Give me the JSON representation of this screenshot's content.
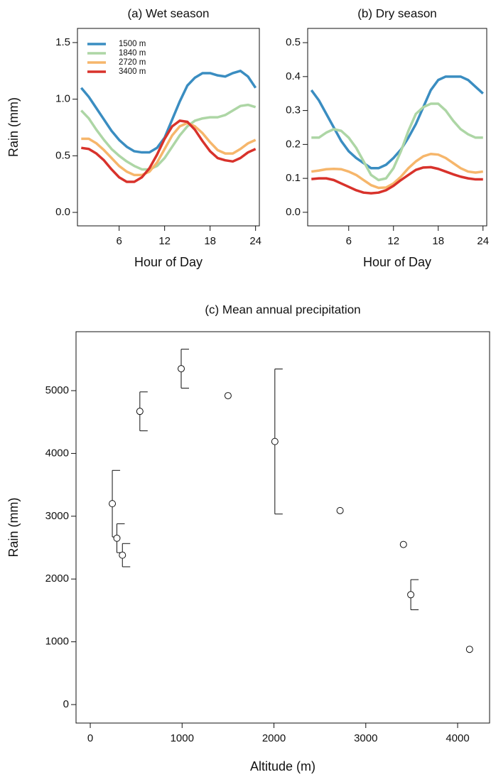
{
  "chart_data": [
    {
      "type": "line",
      "title": "(a) Wet season",
      "xlabel": "Hour of Day",
      "ylabel": "Rain (mm)",
      "x": [
        1,
        2,
        3,
        4,
        5,
        6,
        7,
        8,
        9,
        10,
        11,
        12,
        13,
        14,
        15,
        16,
        17,
        18,
        19,
        20,
        21,
        22,
        23,
        24
      ],
      "xlim": [
        0.5,
        24.5
      ],
      "xticks": [
        6,
        12,
        18,
        24
      ],
      "ylim": [
        -0.119,
        1.625
      ],
      "yticks": [
        {
          "value": 0,
          "label": "0.0"
        },
        0.5,
        {
          "value": 1,
          "label": "1.0"
        },
        1.5
      ],
      "legend": "upper left",
      "series": [
        {
          "name": "1500 m",
          "color": "#3a8dc1",
          "values": [
            1.1,
            1.02,
            0.92,
            0.82,
            0.72,
            0.64,
            0.58,
            0.54,
            0.53,
            0.53,
            0.57,
            0.66,
            0.82,
            0.98,
            1.12,
            1.19,
            1.23,
            1.23,
            1.21,
            1.2,
            1.23,
            1.25,
            1.2,
            1.1
          ]
        },
        {
          "name": "1840 m",
          "color": "#add6a5",
          "values": [
            0.9,
            0.83,
            0.73,
            0.64,
            0.56,
            0.5,
            0.45,
            0.41,
            0.38,
            0.38,
            0.41,
            0.48,
            0.58,
            0.68,
            0.76,
            0.81,
            0.83,
            0.84,
            0.84,
            0.86,
            0.9,
            0.94,
            0.95,
            0.93
          ]
        },
        {
          "name": "2720 m",
          "color": "#f6b66b",
          "values": [
            0.65,
            0.65,
            0.61,
            0.55,
            0.48,
            0.41,
            0.36,
            0.33,
            0.33,
            0.36,
            0.44,
            0.56,
            0.68,
            0.76,
            0.79,
            0.76,
            0.7,
            0.62,
            0.55,
            0.52,
            0.52,
            0.56,
            0.61,
            0.64
          ]
        },
        {
          "name": "3400 m",
          "color": "#d8322b",
          "values": [
            0.57,
            0.56,
            0.52,
            0.46,
            0.38,
            0.31,
            0.27,
            0.27,
            0.31,
            0.39,
            0.51,
            0.65,
            0.76,
            0.81,
            0.8,
            0.73,
            0.63,
            0.54,
            0.48,
            0.46,
            0.45,
            0.48,
            0.53,
            0.56
          ]
        }
      ]
    },
    {
      "type": "line",
      "title": "(b) Dry season",
      "xlabel": "Hour of Day",
      "x": [
        1,
        2,
        3,
        4,
        5,
        6,
        7,
        8,
        9,
        10,
        11,
        12,
        13,
        14,
        15,
        16,
        17,
        18,
        19,
        20,
        21,
        22,
        23,
        24
      ],
      "xlim": [
        0.5,
        24.5
      ],
      "xticks": [
        6,
        12,
        18,
        24
      ],
      "ylim": [
        -0.04,
        0.542
      ],
      "yticks": [
        {
          "value": 0,
          "label": "0.0"
        },
        0.1,
        0.2,
        0.3,
        0.4,
        0.5
      ],
      "series": [
        {
          "color": "#3a8dc1",
          "values": [
            0.36,
            0.33,
            0.29,
            0.25,
            0.21,
            0.18,
            0.16,
            0.145,
            0.13,
            0.13,
            0.14,
            0.16,
            0.185,
            0.22,
            0.26,
            0.31,
            0.36,
            0.39,
            0.4,
            0.4,
            0.4,
            0.39,
            0.37,
            0.35
          ]
        },
        {
          "color": "#add6a5",
          "values": [
            0.22,
            0.22,
            0.235,
            0.245,
            0.24,
            0.22,
            0.19,
            0.15,
            0.11,
            0.095,
            0.1,
            0.13,
            0.18,
            0.24,
            0.29,
            0.31,
            0.32,
            0.32,
            0.3,
            0.27,
            0.245,
            0.23,
            0.22,
            0.22
          ]
        },
        {
          "color": "#f6b66b",
          "values": [
            0.12,
            0.123,
            0.127,
            0.128,
            0.127,
            0.12,
            0.11,
            0.095,
            0.08,
            0.072,
            0.073,
            0.085,
            0.105,
            0.13,
            0.15,
            0.165,
            0.172,
            0.17,
            0.16,
            0.145,
            0.13,
            0.12,
            0.117,
            0.12
          ]
        },
        {
          "color": "#d8322b",
          "values": [
            0.098,
            0.1,
            0.1,
            0.095,
            0.085,
            0.075,
            0.065,
            0.058,
            0.056,
            0.058,
            0.065,
            0.078,
            0.095,
            0.11,
            0.125,
            0.132,
            0.133,
            0.128,
            0.12,
            0.112,
            0.105,
            0.1,
            0.097,
            0.097
          ]
        }
      ]
    },
    {
      "type": "scatter",
      "title": "(c) Mean annual precipitation",
      "xlabel": "Altitude (m)",
      "ylabel": "Rain (mm)",
      "x": [
        240,
        290,
        350,
        540,
        990,
        1500,
        2010,
        2720,
        3410,
        3490,
        4130
      ],
      "values": [
        3200,
        2650,
        2380,
        4670,
        5350,
        4920,
        4190,
        3090,
        2550,
        1750,
        880
      ],
      "errors": [
        530,
        230,
        185,
        310,
        310,
        null,
        1155,
        null,
        null,
        240,
        null
      ],
      "xlim": [
        -155,
        4348
      ],
      "xticks": [
        0,
        1000,
        2000,
        3000,
        4000
      ],
      "ylim": [
        -294,
        5939
      ],
      "yticks": [
        0,
        1000,
        2000,
        3000,
        4000,
        5000
      ]
    }
  ]
}
